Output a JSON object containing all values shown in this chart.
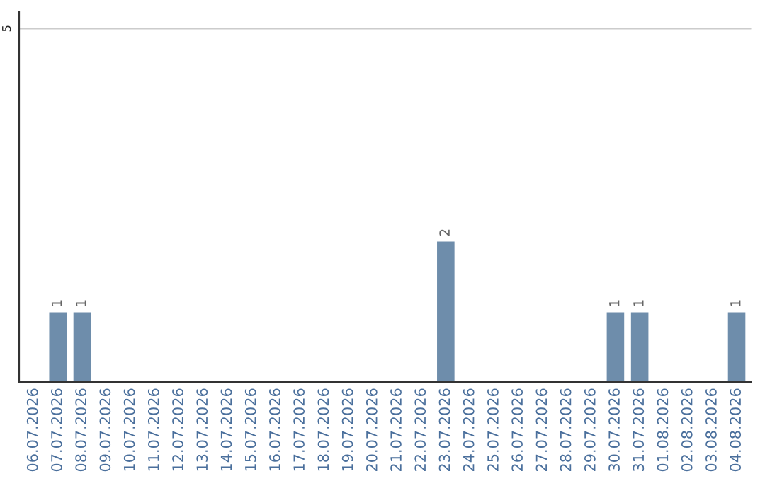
{
  "chart_data": {
    "type": "bar",
    "categories": [
      "06.07.2026",
      "07.07.2026",
      "08.07.2026",
      "09.07.2026",
      "10.07.2026",
      "11.07.2026",
      "12.07.2026",
      "13.07.2026",
      "14.07.2026",
      "15.07.2026",
      "16.07.2026",
      "17.07.2026",
      "18.07.2026",
      "19.07.2026",
      "20.07.2026",
      "21.07.2026",
      "22.07.2026",
      "23.07.2026",
      "24.07.2026",
      "25.07.2026",
      "26.07.2026",
      "27.07.2026",
      "28.07.2026",
      "29.07.2026",
      "30.07.2026",
      "31.07.2026",
      "01.08.2026",
      "02.08.2026",
      "03.08.2026",
      "04.08.2026"
    ],
    "values": [
      null,
      1,
      1,
      null,
      null,
      null,
      null,
      null,
      null,
      null,
      null,
      null,
      null,
      null,
      null,
      null,
      null,
      2,
      null,
      null,
      null,
      null,
      null,
      null,
      1,
      1,
      null,
      null,
      null,
      1
    ],
    "value_labels": [
      null,
      "1",
      "1",
      null,
      null,
      null,
      null,
      null,
      null,
      null,
      null,
      null,
      null,
      null,
      null,
      null,
      null,
      "2",
      null,
      null,
      null,
      null,
      null,
      null,
      "1",
      "1",
      null,
      null,
      null,
      "1"
    ],
    "color": "#6e8dab",
    "ylim": [
      0,
      5.24
    ],
    "yticks": [
      5
    ],
    "grid": "y"
  }
}
